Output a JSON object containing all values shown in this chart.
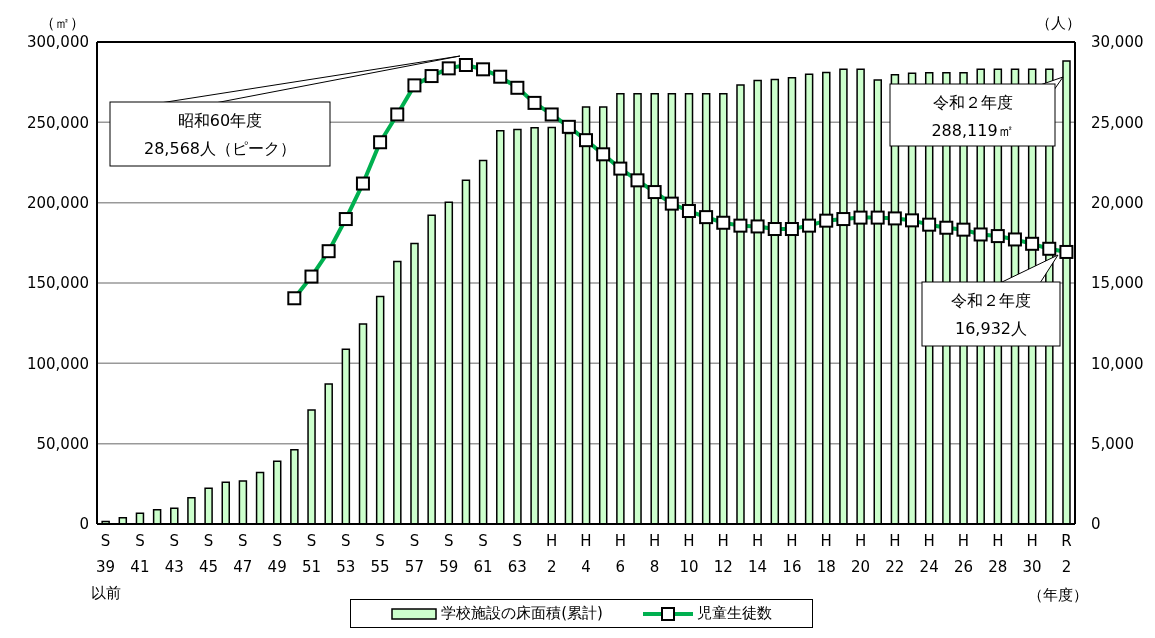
{
  "chart_data": {
    "type": "bar",
    "xlabel": "（年度）",
    "ylabel": "（㎡）",
    "y2label": "（人）",
    "categories": [
      "S\n39\n以前",
      null,
      "S\n41",
      null,
      "S\n43",
      null,
      "S\n45",
      null,
      "S\n47",
      null,
      "S\n49",
      null,
      "S\n51",
      null,
      "S\n53",
      null,
      "S\n55",
      null,
      "S\n57",
      null,
      "S\n59",
      null,
      "S\n61",
      null,
      "S\n63",
      null,
      "H\n2",
      null,
      "H\n4",
      null,
      "H\n6",
      null,
      "H\n8",
      null,
      "H\n10",
      null,
      "H\n12",
      null,
      "H\n14",
      null,
      "H\n16",
      null,
      "H\n18",
      null,
      "H\n20",
      null,
      "H\n22",
      null,
      "H\n24",
      null,
      "H\n26",
      null,
      "H\n28",
      null,
      "H\n30",
      null,
      "R\n2"
    ],
    "series": [
      {
        "name": "学校施設の床面積(累計)",
        "color": "#ccffcc",
        "values": [
          1500,
          3900,
          6700,
          8900,
          9800,
          16400,
          22300,
          26000,
          26800,
          32000,
          39100,
          46200,
          70900,
          87100,
          108700,
          124500,
          141600,
          163400,
          174600,
          192100,
          200200,
          214000,
          226300,
          244700,
          245500,
          246600,
          246800,
          243000,
          259500,
          259500,
          267800,
          267800,
          267800,
          267800,
          267800,
          267800,
          267800,
          273200,
          276100,
          276700,
          277800,
          279900,
          281000,
          283000,
          283000,
          276300,
          279600,
          280500,
          280900,
          280900,
          280900,
          283000,
          283000,
          283000,
          283000,
          283000,
          288119
        ]
      },
      {
        "name": "児童生徒数",
        "type": "line",
        "axis": "y2",
        "color": "#00b050",
        "marker": "square",
        "values": [
          null,
          null,
          null,
          null,
          null,
          null,
          null,
          null,
          null,
          null,
          null,
          14050,
          15400,
          16980,
          18980,
          21190,
          23760,
          25490,
          27300,
          27880,
          28360,
          28568,
          28300,
          27840,
          27150,
          26210,
          25490,
          24720,
          23890,
          23010,
          22120,
          21390,
          20660,
          19940,
          19480,
          19100,
          18750,
          18570,
          18520,
          18360,
          18360,
          18570,
          18880,
          18980,
          19070,
          19070,
          19020,
          18900,
          18630,
          18440,
          18320,
          18020,
          17920,
          17710,
          17440,
          17130,
          16932
        ]
      }
    ],
    "ylim": [
      0,
      300000
    ],
    "yticks": [
      0,
      {
        "value": 50000,
        "label": "50,000"
      },
      {
        "value": 100000,
        "label": "100,000"
      },
      {
        "value": 150000,
        "label": "150,000"
      },
      {
        "value": 200000,
        "label": "200,000"
      },
      {
        "value": 250000,
        "label": "250,000"
      },
      {
        "value": 300000,
        "label": "300,000"
      }
    ],
    "y2lim": [
      0,
      30000
    ],
    "y2ticks": [
      0,
      {
        "value": 5000,
        "label": "5,000"
      },
      {
        "value": 10000,
        "label": "10,000"
      },
      {
        "value": 15000,
        "label": "15,000"
      },
      {
        "value": 20000,
        "label": "20,000"
      },
      {
        "value": 25000,
        "label": "25,000"
      },
      {
        "value": 30000,
        "label": "30,000"
      }
    ],
    "grid": "y",
    "legend": "bottom",
    "annotations": [
      "昭和60年度\n28,568人（ピーク）",
      "令和２年度\n288,119㎡",
      "令和２年度\n16,932人"
    ]
  }
}
